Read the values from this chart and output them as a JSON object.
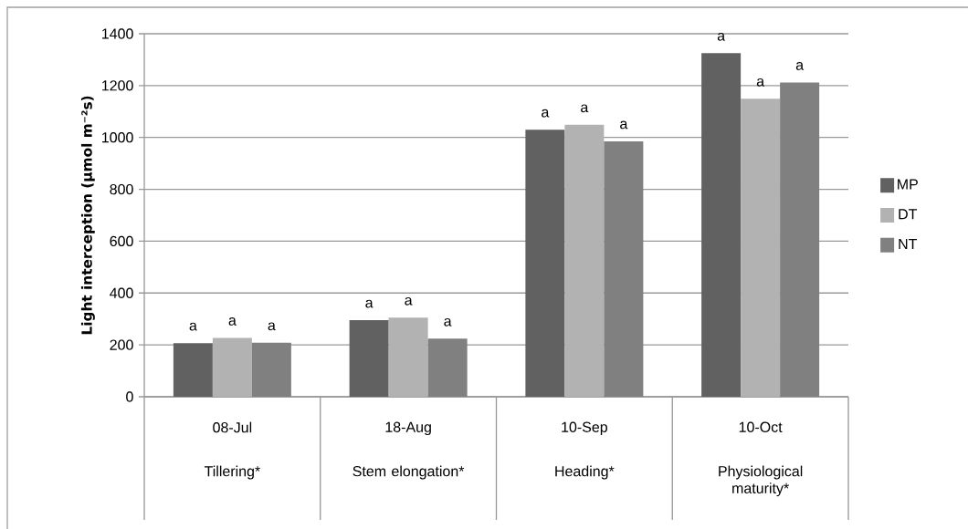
{
  "chart_data": {
    "type": "bar",
    "ylabel": "Light interception (µmol m⁻²s)",
    "categories": [
      "08-Jul",
      "18-Aug",
      "10-Sep",
      "10-Oct"
    ],
    "annotations": [
      "Tillering*",
      "Stem elongation*",
      "Heading*",
      "Physiological maturity*"
    ],
    "series": [
      {
        "name": "MP",
        "color": "#616161",
        "values": [
          207,
          295,
          1030,
          1325
        ],
        "value_labels": [
          "a",
          "a",
          "a",
          "a"
        ]
      },
      {
        "name": "DT",
        "color": "#b2b2b2",
        "values": [
          227,
          305,
          1049,
          1149
        ],
        "value_labels": [
          "a",
          "a",
          "a",
          "a"
        ]
      },
      {
        "name": "NT",
        "color": "#808080",
        "values": [
          208,
          224,
          985,
          1212
        ],
        "value_labels": [
          "a",
          "a",
          "a",
          "a"
        ]
      }
    ],
    "ylim": [
      0,
      1400
    ],
    "yticks": [
      0,
      200,
      400,
      600,
      800,
      1000,
      1200,
      1400
    ],
    "grid": "y",
    "legend": "right"
  }
}
